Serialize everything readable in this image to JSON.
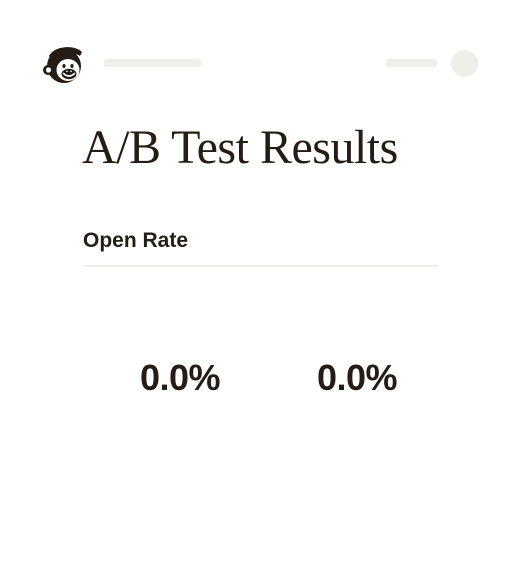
{
  "header": {
    "logo_icon": "mailchimp-freddie-logo-icon",
    "avatar_icon": "avatar-placeholder-icon"
  },
  "page": {
    "title": "A/B Test Results"
  },
  "metric": {
    "label": "Open Rate",
    "variants": [
      {
        "value": "0.0%"
      },
      {
        "value": "0.0%"
      }
    ]
  },
  "colors": {
    "text": "#241c15",
    "placeholder": "#efeeea",
    "background": "#ffffff"
  }
}
